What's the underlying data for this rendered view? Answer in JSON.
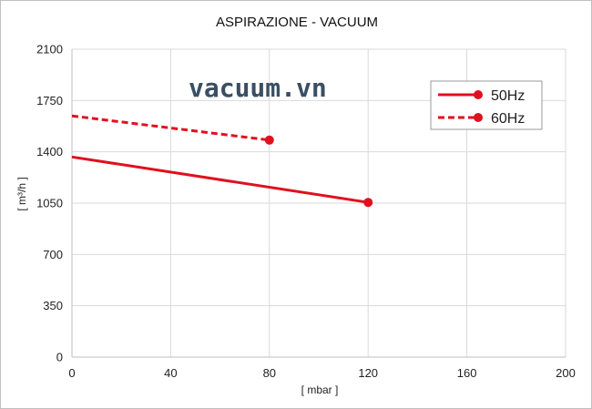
{
  "chart_data": {
    "type": "line",
    "title": "ASPIRAZIONE - VACUUM",
    "xlabel": "[ mbar ]",
    "ylabel": "[ m³/h ]",
    "xlim": [
      0,
      200
    ],
    "ylim": [
      0,
      2100
    ],
    "xticks": [
      "0",
      "40",
      "80",
      "120",
      "160",
      "200"
    ],
    "yticks": [
      "0",
      "350",
      "700",
      "1050",
      "1400",
      "1750",
      "2100"
    ],
    "grid": true,
    "legend_position": "top-right",
    "watermark": "vacuum.vn",
    "series": [
      {
        "name": "50Hz",
        "style": "solid",
        "color": "#e0101f",
        "x": [
          0,
          120
        ],
        "y": [
          1365,
          1055
        ]
      },
      {
        "name": "60Hz",
        "style": "dashed",
        "color": "#e0101f",
        "x": [
          0,
          80
        ],
        "y": [
          1645,
          1480
        ]
      }
    ]
  }
}
